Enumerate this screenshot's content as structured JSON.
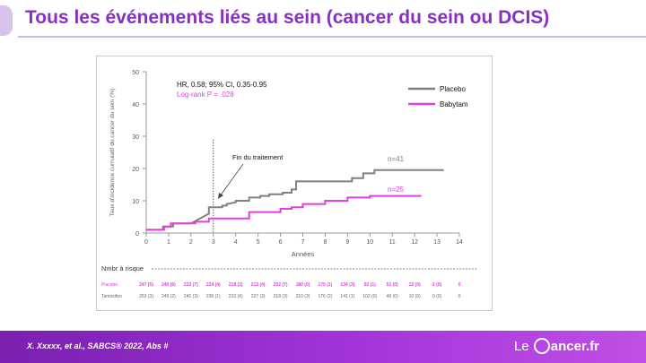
{
  "slide": {
    "title": "Tous les événements liés au sein (cancer du sein ou DCIS)",
    "citation": "X. Xxxxx, et al., SABCS® 2022, Abs #",
    "logo_prefix": "Le",
    "logo_suffix": "ancer.fr"
  },
  "colors": {
    "title": "#8a2fc4",
    "placebo": "#808080",
    "babytam": "#e040e0",
    "footer": "#8a2fc4"
  },
  "chart_data": {
    "type": "line",
    "xlabel": "Années",
    "ylabel": "Taux d'incidence cumulatif du cancer du sein (%)",
    "xlim": [
      0,
      14
    ],
    "ylim": [
      0,
      50
    ],
    "xticks": [
      0,
      1,
      2,
      3,
      4,
      5,
      6,
      7,
      8,
      9,
      10,
      11,
      12,
      13,
      14
    ],
    "yticks": [
      0,
      10,
      20,
      30,
      40,
      50
    ],
    "grid": false,
    "legend_position": "top-right",
    "stats_line1": "HR, 0.58; 95% CI, 0.35-0.95",
    "stats_line2": "Log-rank P = .028",
    "annotation_end": "Fin du traitement",
    "treatment_end_x": 3,
    "series": [
      {
        "name": "Placebo",
        "count_label": "n=41",
        "points": [
          [
            0,
            1
          ],
          [
            0.75,
            1
          ],
          [
            0.75,
            2
          ],
          [
            1.2,
            2
          ],
          [
            1.2,
            3
          ],
          [
            2,
            3
          ],
          [
            2.8,
            6
          ],
          [
            2.8,
            8
          ],
          [
            3.4,
            8
          ],
          [
            3.4,
            8.5
          ],
          [
            3.6,
            8.5
          ],
          [
            3.6,
            9
          ],
          [
            4,
            9.5
          ],
          [
            4,
            10
          ],
          [
            4.6,
            10
          ],
          [
            4.6,
            11
          ],
          [
            5.1,
            11
          ],
          [
            5.1,
            11.5
          ],
          [
            5.5,
            11.5
          ],
          [
            5.5,
            12
          ],
          [
            5.8,
            12
          ],
          [
            5.8,
            12
          ],
          [
            6.1,
            12
          ],
          [
            6.1,
            12.5
          ],
          [
            6.5,
            12.5
          ],
          [
            6.5,
            13.5
          ],
          [
            6.7,
            13.5
          ],
          [
            6.7,
            16
          ],
          [
            9.2,
            16
          ],
          [
            9.2,
            17
          ],
          [
            9.7,
            17
          ],
          [
            9.7,
            18.5
          ],
          [
            10.2,
            18.5
          ],
          [
            10.2,
            19.5
          ],
          [
            13.3,
            19.5
          ]
        ]
      },
      {
        "name": "Babytam",
        "count_label": "n=25",
        "points": [
          [
            0,
            1
          ],
          [
            0.8,
            1
          ],
          [
            0.8,
            2
          ],
          [
            1.1,
            2
          ],
          [
            1.1,
            3
          ],
          [
            2.2,
            3
          ],
          [
            2.2,
            3.5
          ],
          [
            2.8,
            3.5
          ],
          [
            2.8,
            4.5
          ],
          [
            4.6,
            4.5
          ],
          [
            4.6,
            6.5
          ],
          [
            6,
            6.5
          ],
          [
            6,
            7.5
          ],
          [
            6.5,
            7.5
          ],
          [
            6.5,
            8
          ],
          [
            7,
            8
          ],
          [
            7,
            9
          ],
          [
            8,
            9
          ],
          [
            8,
            10
          ],
          [
            9,
            10
          ],
          [
            9,
            11
          ],
          [
            10,
            11
          ],
          [
            10,
            11.5
          ],
          [
            12.3,
            11.5
          ]
        ]
      }
    ],
    "risk_table": {
      "heading": "Nmbr à risque",
      "rows": [
        {
          "label": "Placebo",
          "cells": [
            "247 (5)",
            "240 (6)",
            "233 (7)",
            "224 (4)",
            "218 (3)",
            "213 (4)",
            "202 (7)",
            "180 (0)",
            "170 (1)",
            "134 (3)",
            "92 (1)",
            "51 (0)",
            "12 (0)",
            "2 (0)",
            "0"
          ]
        },
        {
          "label": "Tamoxifen",
          "cells": [
            "253 (3)",
            "245 (2)",
            "241 (3)",
            "236 (1)",
            "232 (4)",
            "227 (3)",
            "218 (3)",
            "210 (3)",
            "176 (2)",
            "141 (1)",
            "102 (0)",
            "46 (0)",
            "10 (0)",
            "0 (0)",
            "0"
          ]
        }
      ]
    }
  }
}
